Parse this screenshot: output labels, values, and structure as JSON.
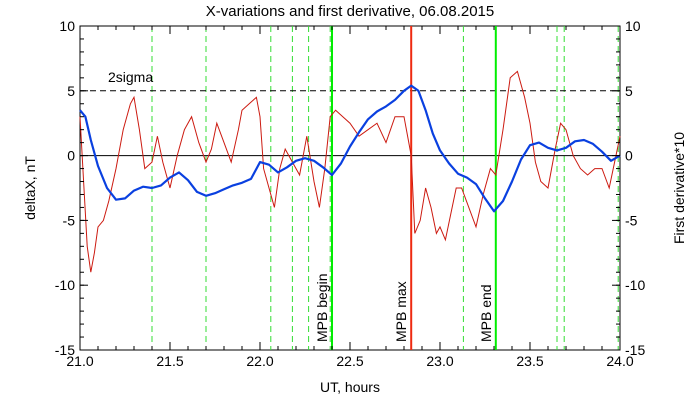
{
  "chart_data": {
    "type": "line",
    "title": "X-variations and first derivative, 06.08.2015",
    "xlabel": "UT, hours",
    "ylabel_left": "deltaX, nT",
    "ylabel_right": "First derivative*10",
    "xlim": [
      21.0,
      24.0
    ],
    "ylim": [
      -15,
      10
    ],
    "xticks": [
      "21.0",
      "21.5",
      "22.0",
      "22.5",
      "23.0",
      "23.5",
      "24.0"
    ],
    "yticks": [
      "-15",
      "-10",
      "-5",
      "0",
      "5",
      "10"
    ],
    "colors": {
      "deltaX": "#0a40e0",
      "derivative": "#cc1a10",
      "mpb_border": "#00ee00",
      "mpb_max": "#ee2a10",
      "event_lines": "#33dd33",
      "axes": "#000000"
    },
    "sigma_label": "2sigma",
    "sigma_level": 5,
    "zero_level": 0,
    "vertical_markers": [
      {
        "x": 22.4,
        "label": "MPB begin",
        "role": "border"
      },
      {
        "x": 22.84,
        "label": "MPB max",
        "role": "max"
      },
      {
        "x": 23.31,
        "label": "MPB end",
        "role": "border"
      }
    ],
    "event_lines_x": [
      21.4,
      21.7,
      22.06,
      22.18,
      22.27,
      22.39,
      23.13,
      23.31,
      23.65,
      23.69,
      23.99
    ],
    "series": [
      {
        "name": "deltaX, nT",
        "x": [
          21.0,
          21.03,
          21.06,
          21.1,
          21.15,
          21.2,
          21.25,
          21.3,
          21.35,
          21.4,
          21.45,
          21.5,
          21.55,
          21.6,
          21.65,
          21.7,
          21.75,
          21.8,
          21.85,
          21.9,
          21.95,
          22.0,
          22.05,
          22.1,
          22.15,
          22.2,
          22.25,
          22.3,
          22.35,
          22.4,
          22.45,
          22.5,
          22.55,
          22.6,
          22.65,
          22.7,
          22.75,
          22.8,
          22.84,
          22.88,
          22.92,
          22.96,
          23.0,
          23.05,
          23.1,
          23.15,
          23.2,
          23.25,
          23.3,
          23.35,
          23.4,
          23.45,
          23.5,
          23.55,
          23.6,
          23.65,
          23.7,
          23.75,
          23.8,
          23.85,
          23.9,
          23.95,
          24.0
        ],
        "values": [
          3.5,
          3.0,
          1.2,
          -0.8,
          -2.5,
          -3.4,
          -3.3,
          -2.7,
          -2.4,
          -2.5,
          -2.3,
          -1.7,
          -1.3,
          -1.9,
          -2.8,
          -3.1,
          -2.9,
          -2.6,
          -2.3,
          -2.1,
          -1.8,
          -0.5,
          -0.7,
          -1.3,
          -0.9,
          -0.4,
          -0.2,
          -0.4,
          -0.9,
          -1.5,
          -0.6,
          0.7,
          1.8,
          2.8,
          3.4,
          3.8,
          4.3,
          5.0,
          5.4,
          5.0,
          3.5,
          1.7,
          0.4,
          -0.6,
          -1.4,
          -1.7,
          -2.2,
          -3.3,
          -4.3,
          -3.5,
          -2.0,
          -0.3,
          0.8,
          1.0,
          0.6,
          0.4,
          0.6,
          1.1,
          1.2,
          0.9,
          0.3,
          -0.4,
          0.0
        ]
      },
      {
        "name": "First derivative*10",
        "x": [
          21.0,
          21.02,
          21.04,
          21.06,
          21.08,
          21.1,
          21.13,
          21.16,
          21.2,
          21.24,
          21.28,
          21.3,
          21.33,
          21.36,
          21.4,
          21.43,
          21.46,
          21.5,
          21.54,
          21.58,
          21.62,
          21.66,
          21.7,
          21.73,
          21.76,
          21.8,
          21.84,
          21.88,
          21.9,
          21.94,
          21.98,
          22.0,
          22.02,
          22.05,
          22.08,
          22.11,
          22.14,
          22.18,
          22.22,
          22.26,
          22.3,
          22.33,
          22.36,
          22.39,
          22.42,
          22.46,
          22.5,
          22.55,
          22.6,
          22.65,
          22.7,
          22.75,
          22.8,
          22.84,
          22.86,
          22.89,
          22.92,
          22.95,
          22.98,
          23.0,
          23.03,
          23.06,
          23.09,
          23.12,
          23.16,
          23.2,
          23.24,
          23.28,
          23.31,
          23.35,
          23.39,
          23.43,
          23.47,
          23.5,
          23.53,
          23.56,
          23.6,
          23.64,
          23.67,
          23.7,
          23.74,
          23.78,
          23.82,
          23.86,
          23.9,
          23.94,
          23.97,
          24.0
        ],
        "values": [
          3.0,
          -2.0,
          -7.0,
          -9.0,
          -7.5,
          -5.5,
          -5.0,
          -3.5,
          -1.0,
          2.0,
          4.0,
          4.5,
          2.0,
          -1.0,
          -0.5,
          1.5,
          -0.5,
          -2.5,
          0.0,
          2.0,
          3.0,
          1.0,
          -0.5,
          0.5,
          2.5,
          1.0,
          -0.5,
          2.0,
          3.5,
          4.0,
          4.5,
          3.0,
          -1.0,
          -2.5,
          -4.0,
          -1.0,
          0.5,
          -0.5,
          -1.5,
          1.5,
          -2.0,
          -4.0,
          -1.0,
          3.0,
          3.5,
          3.0,
          2.5,
          1.5,
          2.0,
          2.5,
          1.0,
          3.0,
          3.0,
          0.0,
          -6.0,
          -5.0,
          -2.5,
          -4.0,
          -6.0,
          -5.5,
          -6.5,
          -4.5,
          -2.5,
          -2.5,
          -4.0,
          -5.5,
          -3.0,
          -1.0,
          -1.5,
          2.0,
          6.0,
          6.5,
          4.5,
          2.5,
          -0.5,
          -2.0,
          -2.5,
          0.5,
          2.5,
          2.0,
          0.0,
          -1.0,
          -1.5,
          -1.0,
          -1.0,
          -2.5,
          -0.5,
          1.5
        ]
      }
    ]
  }
}
